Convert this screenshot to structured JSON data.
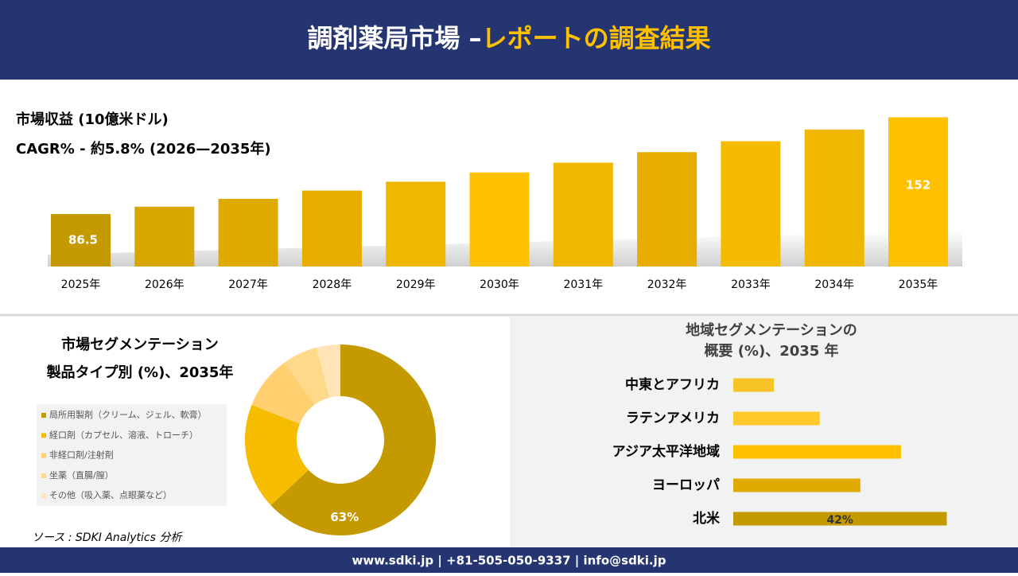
{
  "header": {
    "title_main": "調剤薬局市場 –",
    "title_accent": "レポートの調査結果"
  },
  "chart_data": [
    {
      "type": "bar",
      "title": "市場収益 (10億米ドル)",
      "subtitle": "CAGR% - 約5.8% (2026—2035年)",
      "categories": [
        "2025年",
        "2026年",
        "2027年",
        "2028年",
        "2029年",
        "2030年",
        "2031年",
        "2032年",
        "2033年",
        "2034年",
        "2035年"
      ],
      "values": [
        86.5,
        91.5,
        96.8,
        102.4,
        108.4,
        114.7,
        121.3,
        128.4,
        135.8,
        143.7,
        152
      ],
      "colors": [
        "#c49a00",
        "#d9a600",
        "#dfaa00",
        "#e6ae00",
        "#f0b700",
        "#ffc000",
        "#f0b700",
        "#e6ae00",
        "#f5bb00",
        "#f0b700",
        "#ffc000"
      ],
      "ylim": [
        51,
        156
      ]
    },
    {
      "type": "pie",
      "title": [
        "市場セグメンテーション",
        "製品タイプ別 (%)、2035年"
      ],
      "categories": [
        "局所用製剤（クリーム、ジェル、軟膏）",
        "経口剤（カプセル、溶液、トローチ）",
        "非経口剤/注射剤",
        "坐薬（直腸/膣）",
        "その他（吸入薬、点眼薬など）"
      ],
      "values": [
        63,
        18,
        9,
        6,
        4
      ],
      "value_labels": [
        "63%",
        null,
        null,
        null,
        null
      ],
      "colors": [
        "#c49a00",
        "#f5bc00",
        "#ffcf70",
        "#ffd98a",
        "#ffe4b8"
      ]
    },
    {
      "type": "bar",
      "orientation": "horizontal",
      "title": [
        "地域セグメンテーションの",
        "概要 (%)、2035 年"
      ],
      "categories": [
        "中東とアフリカ",
        "ラテンアメリカ",
        "アジア太平洋地域",
        "ヨーロッパ",
        "北米"
      ],
      "values": [
        8,
        17,
        33,
        25,
        42
      ],
      "value_labels": [
        null,
        null,
        null,
        null,
        "42%"
      ],
      "colors": [
        "#f7c325",
        "#ffc929",
        "#ffc000",
        "#e0aa00",
        "#c49a00"
      ],
      "xlim": [
        0,
        43.5
      ]
    }
  ],
  "source": "ソース : SDKI Analytics 分析",
  "footer": "www.sdki.jp | +81-505-050-9337 | info@sdki.jp"
}
